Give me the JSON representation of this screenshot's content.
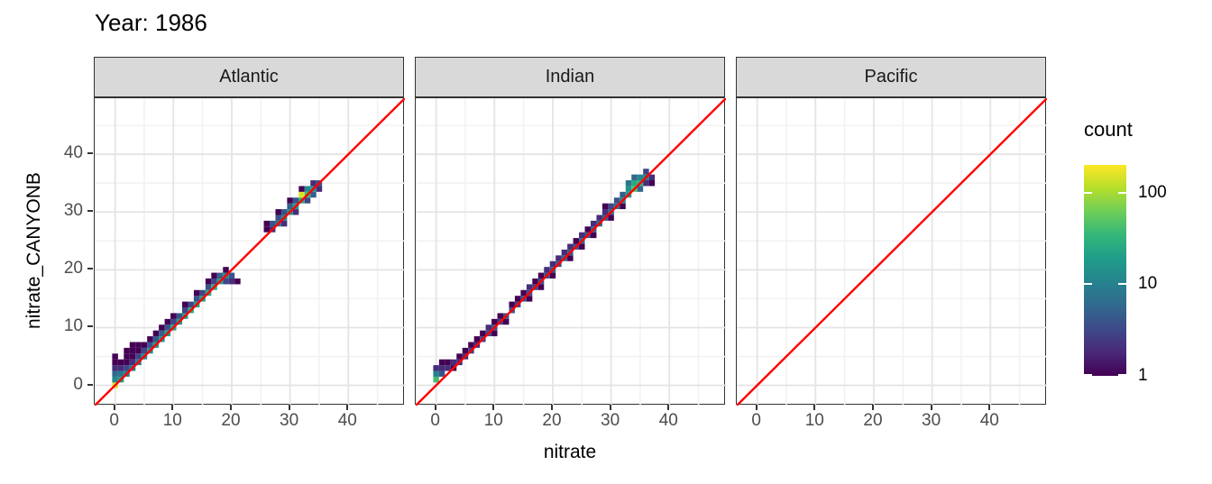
{
  "title": "Year: 1986",
  "chart_data": {
    "type": "heatmap",
    "subtype": "bin2d-scatter-comparison",
    "title": "Year: 1986",
    "xlabel": "nitrate",
    "ylabel": "nitrate_CANYONB",
    "axis": {
      "domain": [
        -3.5,
        49.7
      ],
      "major_ticks": [
        0,
        10,
        20,
        30,
        40
      ],
      "minor_ticks": [
        5,
        15,
        25,
        35,
        45
      ],
      "tick_labels": [
        "0",
        "10",
        "20",
        "30",
        "40"
      ]
    },
    "abline": {
      "slope": 1,
      "intercept": 0,
      "color": "#ff0000",
      "width": 2.4
    },
    "legend": {
      "title": "count",
      "scale": "log10",
      "ticks": [
        1,
        10,
        100
      ],
      "tick_labels": [
        "1",
        "10",
        "100"
      ],
      "max": 200
    },
    "colors": {
      "viridis_stops": [
        "#440154",
        "#482878",
        "#3e4989",
        "#31688e",
        "#26828e",
        "#1f9e89",
        "#35b779",
        "#6ece58",
        "#b5de2b",
        "#fde725"
      ],
      "major_grid": "#e4e4e4",
      "minor_grid": "#f2f2f2",
      "panel_border": "#333333",
      "strip_bg": "#d9d9d9",
      "tick_text": "#4d4d4d"
    },
    "bin_size": 1,
    "facets": [
      {
        "label": "Atlantic",
        "bins": [
          [
            0,
            0,
            150
          ],
          [
            0,
            1,
            12
          ],
          [
            0,
            2,
            6
          ],
          [
            0,
            3,
            2
          ],
          [
            0,
            4,
            1
          ],
          [
            0,
            5,
            1
          ],
          [
            1,
            1,
            20
          ],
          [
            1,
            2,
            8
          ],
          [
            1,
            3,
            2
          ],
          [
            1,
            4,
            1
          ],
          [
            2,
            2,
            10
          ],
          [
            2,
            3,
            3
          ],
          [
            2,
            4,
            1
          ],
          [
            2,
            5,
            1
          ],
          [
            2,
            6,
            1
          ],
          [
            3,
            3,
            8
          ],
          [
            3,
            4,
            2
          ],
          [
            3,
            5,
            1
          ],
          [
            3,
            6,
            1
          ],
          [
            3,
            7,
            1
          ],
          [
            4,
            4,
            10
          ],
          [
            4,
            5,
            3
          ],
          [
            4,
            6,
            1
          ],
          [
            4,
            7,
            1
          ],
          [
            5,
            5,
            12
          ],
          [
            5,
            6,
            3
          ],
          [
            5,
            7,
            1
          ],
          [
            6,
            6,
            15
          ],
          [
            6,
            7,
            4
          ],
          [
            6,
            8,
            1
          ],
          [
            7,
            7,
            18
          ],
          [
            7,
            8,
            4
          ],
          [
            7,
            9,
            1
          ],
          [
            8,
            8,
            15
          ],
          [
            8,
            9,
            5
          ],
          [
            8,
            10,
            1
          ],
          [
            9,
            9,
            20
          ],
          [
            9,
            10,
            4
          ],
          [
            9,
            11,
            1
          ],
          [
            10,
            10,
            22
          ],
          [
            10,
            11,
            3
          ],
          [
            10,
            12,
            1
          ],
          [
            11,
            11,
            18
          ],
          [
            11,
            12,
            4
          ],
          [
            12,
            12,
            20
          ],
          [
            12,
            13,
            3
          ],
          [
            12,
            14,
            1
          ],
          [
            13,
            13,
            28
          ],
          [
            13,
            14,
            3
          ],
          [
            14,
            14,
            22
          ],
          [
            14,
            15,
            4
          ],
          [
            14,
            16,
            1
          ],
          [
            15,
            15,
            20
          ],
          [
            15,
            16,
            3
          ],
          [
            16,
            16,
            25
          ],
          [
            16,
            17,
            4
          ],
          [
            16,
            18,
            1
          ],
          [
            17,
            17,
            28
          ],
          [
            17,
            18,
            3
          ],
          [
            17,
            19,
            1
          ],
          [
            18,
            18,
            22
          ],
          [
            18,
            19,
            5
          ],
          [
            19,
            18,
            3
          ],
          [
            19,
            19,
            12
          ],
          [
            19,
            20,
            1
          ],
          [
            20,
            18,
            2
          ],
          [
            20,
            19,
            4
          ],
          [
            21,
            18,
            1
          ],
          [
            26,
            27,
            1
          ],
          [
            26,
            28,
            1
          ],
          [
            27,
            27,
            2
          ],
          [
            27,
            28,
            4
          ],
          [
            28,
            28,
            8
          ],
          [
            28,
            29,
            4
          ],
          [
            28,
            30,
            1
          ],
          [
            29,
            28,
            2
          ],
          [
            29,
            29,
            12
          ],
          [
            29,
            30,
            4
          ],
          [
            30,
            30,
            15
          ],
          [
            30,
            31,
            5
          ],
          [
            30,
            32,
            1
          ],
          [
            31,
            30,
            2
          ],
          [
            31,
            31,
            20
          ],
          [
            31,
            32,
            4
          ],
          [
            32,
            32,
            25
          ],
          [
            32,
            33,
            150
          ],
          [
            32,
            34,
            1
          ],
          [
            33,
            32,
            3
          ],
          [
            33,
            33,
            35
          ],
          [
            33,
            34,
            12
          ],
          [
            34,
            33,
            5
          ],
          [
            34,
            34,
            15
          ],
          [
            34,
            35,
            2
          ],
          [
            35,
            34,
            2
          ],
          [
            35,
            35,
            4
          ]
        ]
      },
      {
        "label": "Indian",
        "bins": [
          [
            0,
            1,
            40
          ],
          [
            0,
            2,
            10
          ],
          [
            0,
            3,
            2
          ],
          [
            1,
            2,
            4
          ],
          [
            1,
            3,
            2
          ],
          [
            1,
            4,
            1
          ],
          [
            2,
            3,
            2
          ],
          [
            2,
            4,
            1
          ],
          [
            3,
            3,
            1
          ],
          [
            3,
            4,
            2
          ],
          [
            4,
            4,
            2
          ],
          [
            4,
            5,
            1
          ],
          [
            5,
            5,
            2
          ],
          [
            5,
            6,
            1
          ],
          [
            6,
            6,
            3
          ],
          [
            6,
            7,
            1
          ],
          [
            7,
            7,
            2
          ],
          [
            7,
            8,
            1
          ],
          [
            8,
            8,
            3
          ],
          [
            8,
            9,
            1
          ],
          [
            9,
            9,
            4
          ],
          [
            9,
            10,
            2
          ],
          [
            10,
            9,
            1
          ],
          [
            10,
            10,
            4
          ],
          [
            10,
            11,
            1
          ],
          [
            11,
            11,
            3
          ],
          [
            11,
            12,
            1
          ],
          [
            12,
            11,
            1
          ],
          [
            12,
            12,
            4
          ],
          [
            13,
            13,
            4
          ],
          [
            13,
            14,
            1
          ],
          [
            14,
            14,
            3
          ],
          [
            14,
            15,
            1
          ],
          [
            15,
            15,
            4
          ],
          [
            15,
            16,
            1
          ],
          [
            16,
            15,
            1
          ],
          [
            16,
            16,
            4
          ],
          [
            16,
            17,
            2
          ],
          [
            17,
            17,
            3
          ],
          [
            17,
            18,
            1
          ],
          [
            18,
            17,
            1
          ],
          [
            18,
            18,
            4
          ],
          [
            18,
            19,
            1
          ],
          [
            19,
            19,
            4
          ],
          [
            19,
            20,
            2
          ],
          [
            20,
            19,
            1
          ],
          [
            20,
            20,
            5
          ],
          [
            20,
            21,
            2
          ],
          [
            21,
            21,
            4
          ],
          [
            21,
            22,
            2
          ],
          [
            22,
            22,
            6
          ],
          [
            22,
            23,
            2
          ],
          [
            23,
            22,
            1
          ],
          [
            23,
            23,
            5
          ],
          [
            23,
            24,
            2
          ],
          [
            24,
            24,
            4
          ],
          [
            24,
            25,
            1
          ],
          [
            25,
            24,
            1
          ],
          [
            25,
            25,
            6
          ],
          [
            25,
            26,
            2
          ],
          [
            26,
            26,
            4
          ],
          [
            26,
            27,
            1
          ],
          [
            27,
            26,
            1
          ],
          [
            27,
            27,
            5
          ],
          [
            27,
            28,
            2
          ],
          [
            28,
            28,
            6
          ],
          [
            28,
            29,
            2
          ],
          [
            29,
            29,
            5
          ],
          [
            29,
            30,
            2
          ],
          [
            29,
            31,
            1
          ],
          [
            30,
            29,
            1
          ],
          [
            30,
            30,
            6
          ],
          [
            30,
            31,
            3
          ],
          [
            31,
            31,
            8
          ],
          [
            31,
            32,
            4
          ],
          [
            32,
            31,
            1
          ],
          [
            32,
            32,
            10
          ],
          [
            32,
            33,
            5
          ],
          [
            33,
            33,
            20
          ],
          [
            33,
            34,
            15
          ],
          [
            33,
            35,
            8
          ],
          [
            34,
            34,
            45
          ],
          [
            34,
            35,
            25
          ],
          [
            34,
            36,
            6
          ],
          [
            35,
            34,
            6
          ],
          [
            35,
            35,
            30
          ],
          [
            35,
            36,
            12
          ],
          [
            36,
            35,
            2
          ],
          [
            36,
            36,
            10
          ],
          [
            36,
            37,
            3
          ],
          [
            37,
            35,
            1
          ],
          [
            37,
            36,
            2
          ]
        ]
      },
      {
        "label": "Pacific",
        "bins": []
      }
    ]
  }
}
